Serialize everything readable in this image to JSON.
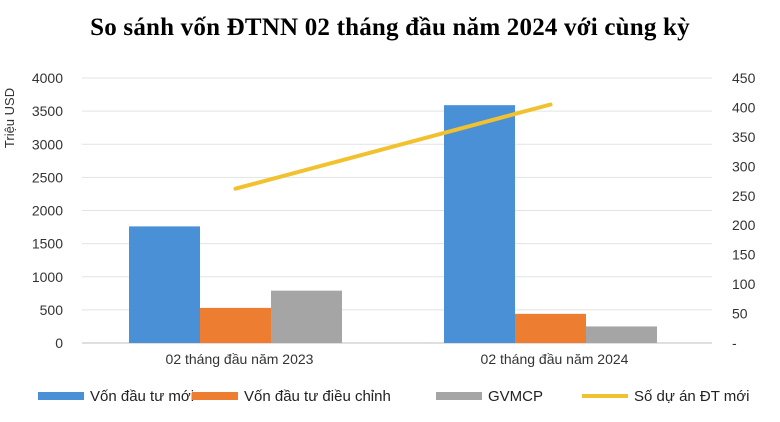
{
  "chart_data": {
    "type": "bar",
    "title": "So sánh vốn ĐTNN 02 tháng đầu năm 2024 với cùng kỳ",
    "ylabel": "Triệu USD",
    "categories": [
      "02 tháng đầu năm 2023",
      "02 tháng đầu năm 2024"
    ],
    "ylim": [
      0,
      4000
    ],
    "yticks": [
      "0",
      "500",
      "1000",
      "1500",
      "2000",
      "2500",
      "3000",
      "3500",
      "4000"
    ],
    "y2lim": [
      0,
      450
    ],
    "y2ticks": [
      "-",
      "50",
      "100",
      "150",
      "200",
      "250",
      "300",
      "350",
      "400",
      "450"
    ],
    "series": [
      {
        "name": "Vốn đầu tư mới",
        "type": "bar",
        "axis": "left",
        "color": "#4a90d6",
        "values": [
          1760,
          3590
        ]
      },
      {
        "name": "Vốn đầu tư điều chỉnh",
        "type": "bar",
        "axis": "left",
        "color": "#ed7d31",
        "values": [
          530,
          440
        ]
      },
      {
        "name": "GVMCP",
        "type": "bar",
        "axis": "left",
        "color": "#a5a5a5",
        "values": [
          790,
          250
        ]
      },
      {
        "name": "Số dự án ĐT mới",
        "type": "line",
        "axis": "right",
        "color": "#f2c12e",
        "values": [
          262,
          405
        ]
      }
    ],
    "grid": true,
    "legend": "bottom"
  }
}
